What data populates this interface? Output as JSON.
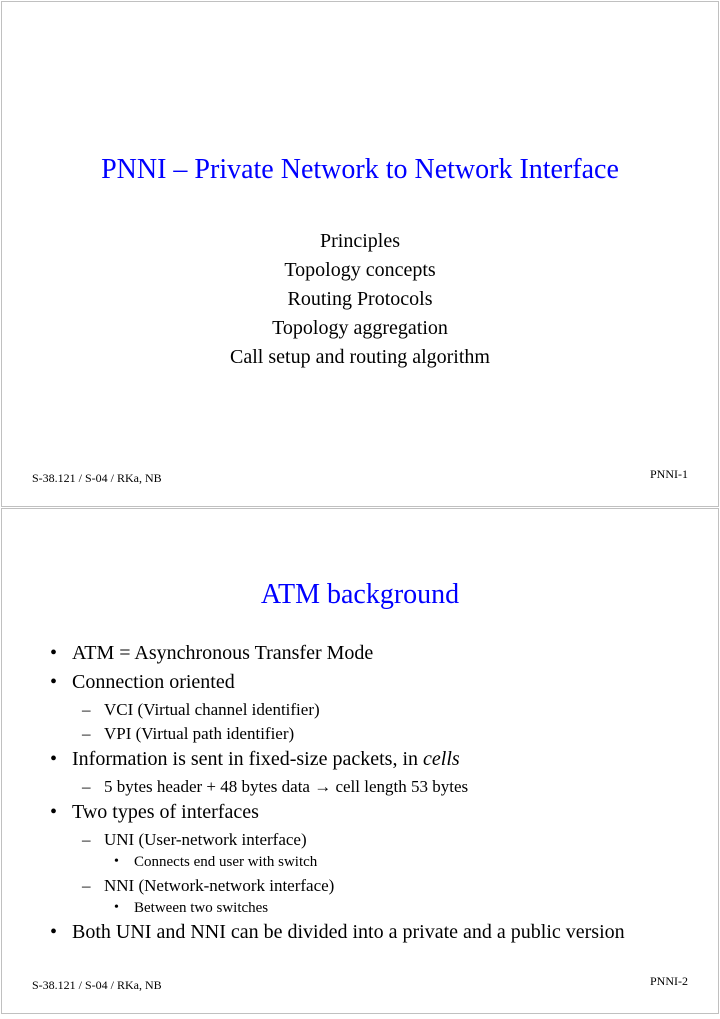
{
  "colors": {
    "title": "#0000ff",
    "text": "#000000",
    "border": "#c0c0c0",
    "background": "#ffffff"
  },
  "fonts": {
    "family": "Times New Roman",
    "title_size_pt": 28,
    "body_size_pt": 20,
    "sub_size_pt": 17,
    "subsub_size_pt": 15,
    "footer_size_pt": 12
  },
  "slide1": {
    "title": "PNNI – Private Network to Network Interface",
    "lines": [
      "Principles",
      "Topology concepts",
      "Routing Protocols",
      "Topology aggregation",
      "Call setup and routing algorithm"
    ],
    "footer_left": "S-38.121 / S-04 / RKa, NB",
    "footer_right": "PNNI-1"
  },
  "slide2": {
    "title": "ATM background",
    "b1": "ATM = Asynchronous Transfer Mode",
    "b2": "Connection oriented",
    "b2a": "VCI (Virtual channel identifier)",
    "b2b": "VPI (Virtual path identifier)",
    "b3_pre": "Information is sent in fixed-size packets, in ",
    "b3_em": "cells",
    "b3a_pre": "5 bytes header + 48 bytes data ",
    "b3a_arrow": "→",
    "b3a_post": " cell length 53 bytes",
    "b4": "Two types of interfaces",
    "b4a": "UNI (User-network interface)",
    "b4a1": "Connects end user with switch",
    "b4b": "NNI (Network-network interface)",
    "b4b1": "Between two switches",
    "b5": "Both UNI and NNI can be divided into a private and a public version",
    "footer_left": "S-38.121 / S-04 / RKa, NB",
    "footer_right": "PNNI-2"
  }
}
